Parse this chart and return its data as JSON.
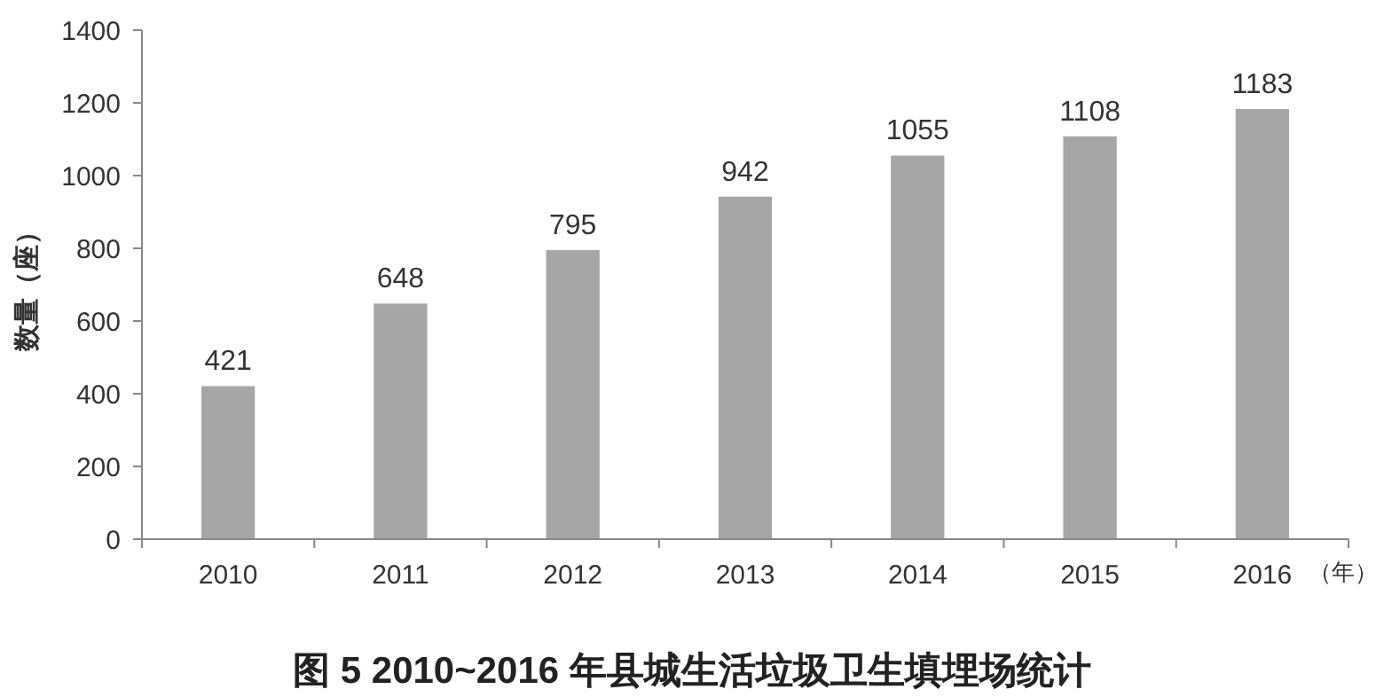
{
  "chart_data": {
    "type": "bar",
    "title": "图 5 2010~2016 年县城生活垃圾卫生填埋场统计",
    "xlabel": "（年）",
    "ylabel": "数量（座）",
    "categories": [
      "2010",
      "2011",
      "2012",
      "2013",
      "2014",
      "2015",
      "2016"
    ],
    "values": [
      421,
      648,
      795,
      942,
      1055,
      1108,
      1183
    ],
    "color": "#a6a6a6",
    "ylim": [
      0,
      1400
    ],
    "yticks": [
      0,
      200,
      400,
      600,
      800,
      1000,
      1200,
      1400
    ],
    "grid": false,
    "data_labels": true
  }
}
